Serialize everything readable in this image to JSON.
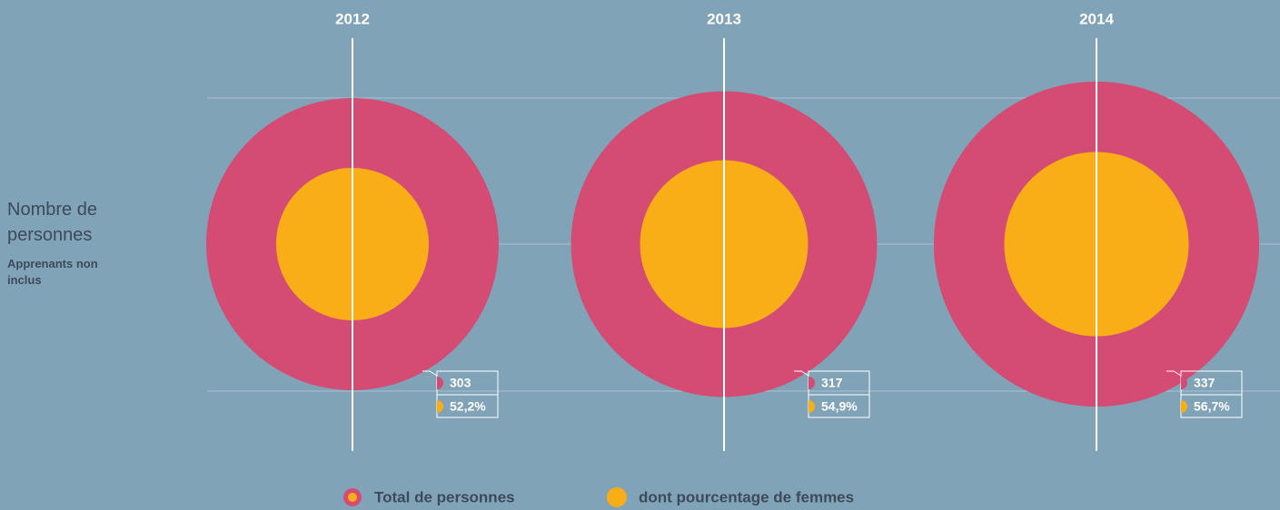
{
  "chart_data": {
    "type": "nested-circle",
    "y_label": "Nombre de personnes",
    "y_sublabel": "Apprenants non inclus",
    "categories": [
      "2012",
      "2013",
      "2014"
    ],
    "series": [
      {
        "name": "Total de personnes",
        "color": "#d44c74",
        "values": [
          303,
          317,
          337
        ]
      },
      {
        "name": "dont pourcentage de femmes",
        "color": "#f9ae18",
        "values": [
          52.2,
          54.9,
          56.7
        ],
        "value_labels": [
          "52,2%",
          "54,9%",
          "56,7%"
        ]
      }
    ]
  }
}
